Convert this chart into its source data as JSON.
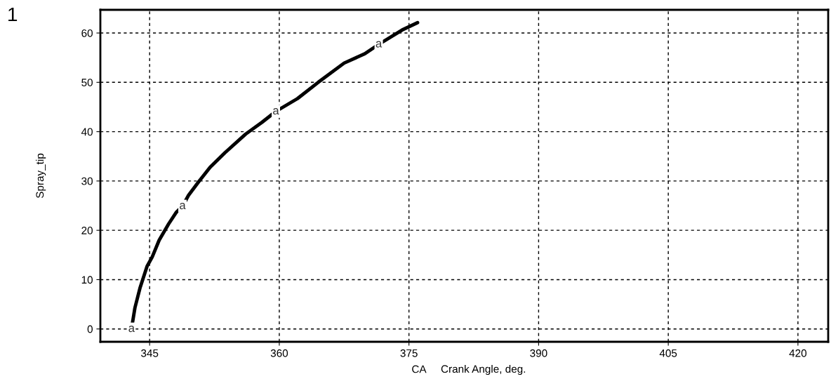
{
  "chart_data": {
    "type": "line",
    "xlabel": "CA",
    "ylabel": "Spray_tip",
    "annotations": [
      "1",
      "Crank Angle, deg."
    ],
    "xlim": [
      339.3,
      423.5
    ],
    "xticks": [
      345,
      360,
      375,
      390,
      405,
      420
    ],
    "ylim": [
      -2.6,
      64.7
    ],
    "yticks": [
      0,
      10,
      20,
      30,
      40,
      50,
      60
    ],
    "grid": true,
    "line_style": "solid",
    "marker": "none",
    "series": [
      {
        "name": "a",
        "color": "#000000",
        "x": [
          342.9,
          343.3,
          343.9,
          344.7,
          345.3,
          346.1,
          347.2,
          348.1,
          348.8,
          349.5,
          350.7,
          352.0,
          353.7,
          356.1,
          358.0,
          359.6,
          362.1,
          364.5,
          367.5,
          369.9,
          371.5,
          374.2,
          376.0
        ],
        "values": [
          0.0,
          4.3,
          8.4,
          12.7,
          14.6,
          18.0,
          21.3,
          23.7,
          24.9,
          27.1,
          29.9,
          32.8,
          35.7,
          39.5,
          41.9,
          44.1,
          46.7,
          50.0,
          53.9,
          55.8,
          57.7,
          60.6,
          62.1
        ]
      }
    ]
  }
}
